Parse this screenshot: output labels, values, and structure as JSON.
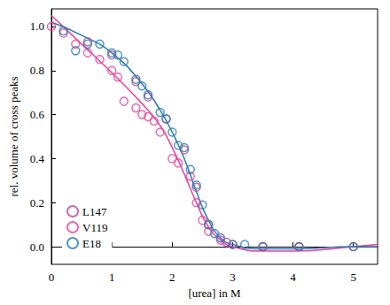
{
  "chart_data": {
    "type": "scatter",
    "x_label": "[urea] in M",
    "y_label": "rel. volume of cross peaks",
    "xlim": [
      0,
      5.4
    ],
    "xticks": [
      0,
      1,
      2,
      3,
      4,
      5
    ],
    "ylim": [
      -0.08,
      1.08
    ],
    "yticks": [
      {
        "value": 0,
        "label": "0.0"
      },
      {
        "value": 0.2,
        "label": "0.2"
      },
      {
        "value": 0.4,
        "label": "0.4"
      },
      {
        "value": 0.6,
        "label": "0.6"
      },
      {
        "value": 0.8,
        "label": "0.8"
      },
      {
        "value": 1,
        "label": "1.0"
      }
    ],
    "grid": false,
    "legend": "lower left",
    "series": [
      {
        "name": "L147",
        "type": "scatter",
        "marker": "circle-open",
        "color": "#b8489e",
        "x": [
          0.6,
          1.0,
          1.4,
          1.6,
          1.9,
          2.2,
          2.4,
          2.6,
          2.9,
          3.5,
          4.1
        ],
        "values": [
          0.93,
          0.87,
          0.75,
          0.68,
          0.58,
          0.44,
          0.27,
          0.1,
          0.02,
          0.0,
          0.0
        ]
      },
      {
        "name": "V119",
        "type": "scatter",
        "marker": "circle-open",
        "color": "#e8449a",
        "x": [
          0.0,
          0.2,
          0.4,
          0.6,
          0.8,
          1.0,
          1.1,
          1.2,
          1.4,
          1.5,
          1.6,
          1.7,
          1.8,
          2.0,
          2.1,
          2.3,
          2.4,
          2.5,
          2.6,
          2.8,
          3.0,
          3.5,
          4.1,
          5.0
        ],
        "values": [
          1.0,
          0.97,
          0.92,
          0.88,
          0.85,
          0.8,
          0.77,
          0.66,
          0.63,
          0.6,
          0.59,
          0.57,
          0.52,
          0.4,
          0.38,
          0.32,
          0.2,
          0.12,
          0.07,
          0.03,
          0.01,
          0.0,
          0.0,
          0.0
        ]
      },
      {
        "name": "E18",
        "type": "scatter",
        "marker": "circle-open",
        "color": "#2a7ab8",
        "x": [
          0.2,
          0.4,
          0.6,
          0.8,
          1.0,
          1.1,
          1.2,
          1.4,
          1.5,
          1.6,
          1.8,
          1.9,
          2.0,
          2.1,
          2.2,
          2.3,
          2.4,
          2.5,
          2.6,
          2.7,
          2.8,
          3.0,
          3.2,
          3.5,
          4.1,
          5.0
        ],
        "values": [
          0.98,
          0.89,
          0.92,
          0.92,
          0.88,
          0.87,
          0.84,
          0.76,
          0.73,
          0.69,
          0.61,
          0.58,
          0.52,
          0.46,
          0.45,
          0.35,
          0.28,
          0.19,
          0.1,
          0.06,
          0.04,
          0.01,
          0.01,
          0.0,
          0.0,
          0.0
        ]
      },
      {
        "type": "line",
        "line_style": "solid",
        "color": "#e8449a",
        "x": [
          0,
          0.5,
          1.0,
          1.5,
          1.8,
          2.0,
          2.2,
          2.4,
          2.6,
          2.8,
          3.0,
          3.5,
          4.0,
          5.0,
          5.4
        ],
        "values": [
          1.05,
          0.92,
          0.79,
          0.65,
          0.55,
          0.45,
          0.33,
          0.2,
          0.09,
          0.03,
          0.0,
          -0.02,
          -0.02,
          0.0,
          0.01
        ]
      },
      {
        "type": "line",
        "line_style": "solid",
        "color": "#2a7ab8",
        "x": [
          0,
          0.5,
          1.0,
          1.5,
          1.8,
          2.0,
          2.2,
          2.4,
          2.6,
          2.8,
          3.0,
          3.5,
          4.0,
          5.0,
          5.4
        ],
        "values": [
          1.02,
          0.96,
          0.88,
          0.74,
          0.62,
          0.52,
          0.4,
          0.25,
          0.12,
          0.04,
          0.01,
          -0.01,
          -0.01,
          0.0,
          0.0
        ]
      }
    ]
  }
}
